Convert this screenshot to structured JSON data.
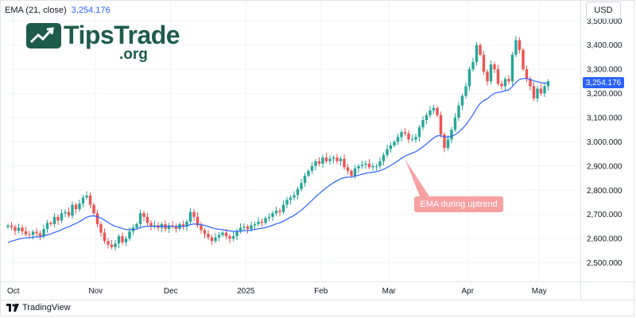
{
  "indicator": {
    "name": "EMA (21, close)",
    "value": "3,254.176"
  },
  "currency": "USD",
  "watermark": {
    "brand": "TipsTrade",
    "suffix": ".org"
  },
  "annotation": "EMA during uptrend",
  "footer": {
    "brand": "TradingView"
  },
  "colors": {
    "up": "#26a69a",
    "down": "#ef5350",
    "ema": "#2962ff",
    "grid": "#f0f3fa",
    "brand": "#1d5c4b"
  },
  "chart_data": {
    "type": "candlestick",
    "ylim": [
      2410,
      3560
    ],
    "y_ticks": [
      2500,
      2600,
      2700,
      2800,
      2900,
      3000,
      3100,
      3200,
      3300,
      3400,
      3500
    ],
    "y_tick_labels": [
      "2,500.000",
      "2,600.000",
      "2,700.000",
      "2,800.000",
      "2,900.000",
      "3,000.000",
      "3,100.000",
      "3,200.000",
      "3,300.000",
      "3,400.000",
      "3,500.000"
    ],
    "x_labels": [
      {
        "label": "Oct",
        "index": 1.5
      },
      {
        "label": "Nov",
        "index": 24.5
      },
      {
        "label": "Dec",
        "index": 45.5
      },
      {
        "label": "2025",
        "index": 66.5
      },
      {
        "label": "Feb",
        "index": 87.5
      },
      {
        "label": "Mar",
        "index": 106.5
      },
      {
        "label": "Apr",
        "index": 128.5
      },
      {
        "label": "May",
        "index": 148.5
      }
    ],
    "closes": [
      2654,
      2648,
      2632,
      2645,
      2630,
      2618,
      2615,
      2628,
      2622,
      2610,
      2640,
      2665,
      2660,
      2690,
      2675,
      2705,
      2710,
      2695,
      2740,
      2722,
      2745,
      2770,
      2778,
      2740,
      2705,
      2660,
      2625,
      2590,
      2575,
      2565,
      2580,
      2610,
      2585,
      2600,
      2630,
      2645,
      2660,
      2705,
      2690,
      2665,
      2650,
      2655,
      2645,
      2660,
      2640,
      2655,
      2650,
      2640,
      2660,
      2650,
      2670,
      2710,
      2690,
      2655,
      2635,
      2620,
      2605,
      2590,
      2605,
      2615,
      2625,
      2610,
      2600,
      2610,
      2630,
      2645,
      2650,
      2640,
      2655,
      2660,
      2670,
      2665,
      2685,
      2690,
      2705,
      2715,
      2710,
      2740,
      2760,
      2770,
      2780,
      2805,
      2830,
      2860,
      2880,
      2900,
      2920,
      2910,
      2935,
      2920,
      2930,
      2935,
      2920,
      2930,
      2895,
      2880,
      2860,
      2890,
      2900,
      2905,
      2910,
      2895,
      2900,
      2900,
      2920,
      2945,
      2970,
      2985,
      3000,
      3020,
      3040,
      3035,
      3010,
      3010,
      3020,
      3060,
      3090,
      3110,
      3130,
      3140,
      3110,
      3030,
      2975,
      3010,
      3050,
      3100,
      3150,
      3190,
      3230,
      3300,
      3330,
      3400,
      3360,
      3290,
      3250,
      3320,
      3300,
      3240,
      3230,
      3260,
      3250,
      3360,
      3420,
      3380,
      3300,
      3260,
      3230,
      3180,
      3220,
      3200,
      3230,
      3250
    ]
  }
}
